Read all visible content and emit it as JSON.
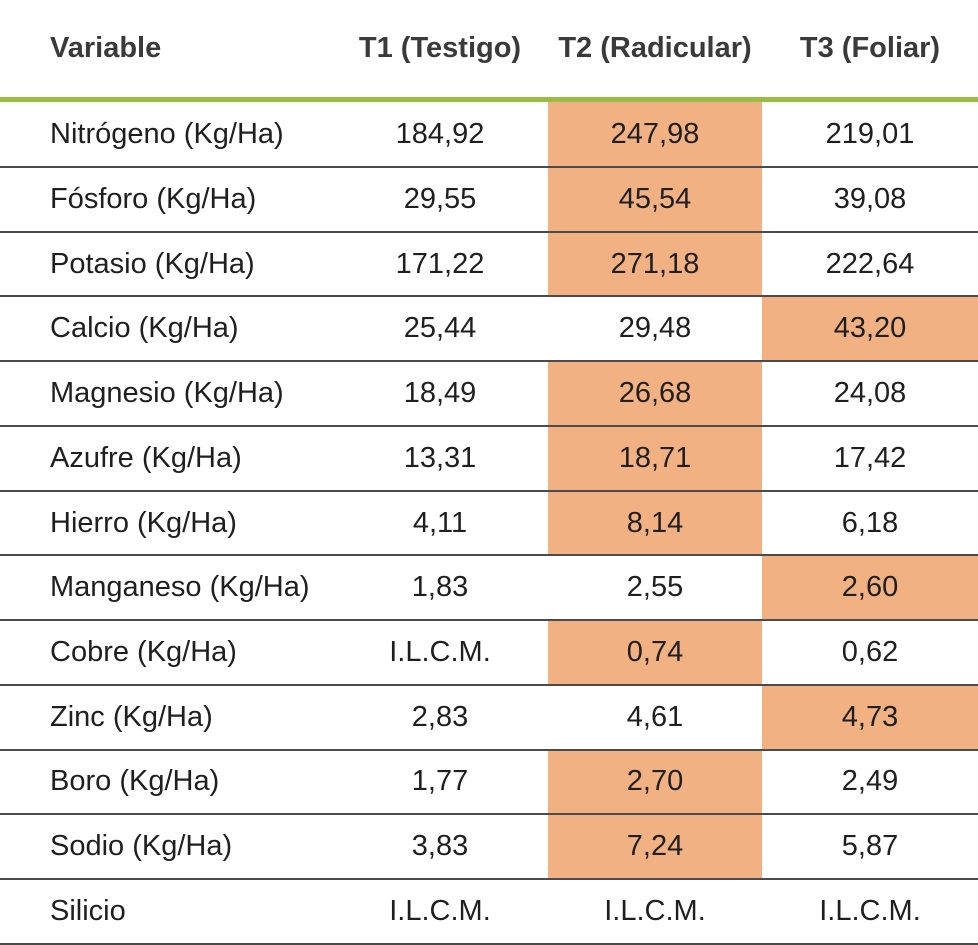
{
  "chart_data": {
    "type": "table",
    "columns": [
      "Variable",
      "T1 (Testigo)",
      "T2 (Radicular)",
      "T3 (Foliar)"
    ],
    "rows": [
      {
        "variable": "Nitrógeno (Kg/Ha)",
        "values": [
          "184,92",
          "247,98",
          "219,01"
        ],
        "highlight_col": 1
      },
      {
        "variable": "Fósforo (Kg/Ha)",
        "values": [
          "29,55",
          "45,54",
          "39,08"
        ],
        "highlight_col": 1
      },
      {
        "variable": "Potasio (Kg/Ha)",
        "values": [
          "171,22",
          "271,18",
          "222,64"
        ],
        "highlight_col": 1
      },
      {
        "variable": "Calcio (Kg/Ha)",
        "values": [
          "25,44",
          "29,48",
          "43,20"
        ],
        "highlight_col": 2
      },
      {
        "variable": "Magnesio (Kg/Ha)",
        "values": [
          "18,49",
          "26,68",
          "24,08"
        ],
        "highlight_col": 1
      },
      {
        "variable": "Azufre (Kg/Ha)",
        "values": [
          "13,31",
          "18,71",
          "17,42"
        ],
        "highlight_col": 1
      },
      {
        "variable": "Hierro (Kg/Ha)",
        "values": [
          "4,11",
          "8,14",
          "6,18"
        ],
        "highlight_col": 1
      },
      {
        "variable": "Manganeso (Kg/Ha)",
        "values": [
          "1,83",
          "2,55",
          "2,60"
        ],
        "highlight_col": 2
      },
      {
        "variable": "Cobre (Kg/Ha)",
        "values": [
          "I.L.C.M.",
          "0,74",
          "0,62"
        ],
        "highlight_col": 1
      },
      {
        "variable": "Zinc (Kg/Ha)",
        "values": [
          "2,83",
          "4,61",
          "4,73"
        ],
        "highlight_col": 2
      },
      {
        "variable": "Boro (Kg/Ha)",
        "values": [
          "1,77",
          "2,70",
          "2,49"
        ],
        "highlight_col": 1
      },
      {
        "variable": "Sodio (Kg/Ha)",
        "values": [
          "3,83",
          "7,24",
          "5,87"
        ],
        "highlight_col": 1
      },
      {
        "variable": "Silicio",
        "values": [
          "I.L.C.M.",
          "I.L.C.M.",
          "I.L.C.M."
        ],
        "highlight_col": null
      }
    ]
  },
  "colors": {
    "highlight": "#f2b183",
    "header_rule": "#9abb44",
    "row_rule": "#4b4b4b",
    "header_text": "#3a3a3a",
    "body_text": "#1f1f1f",
    "background": "#ffffff"
  }
}
